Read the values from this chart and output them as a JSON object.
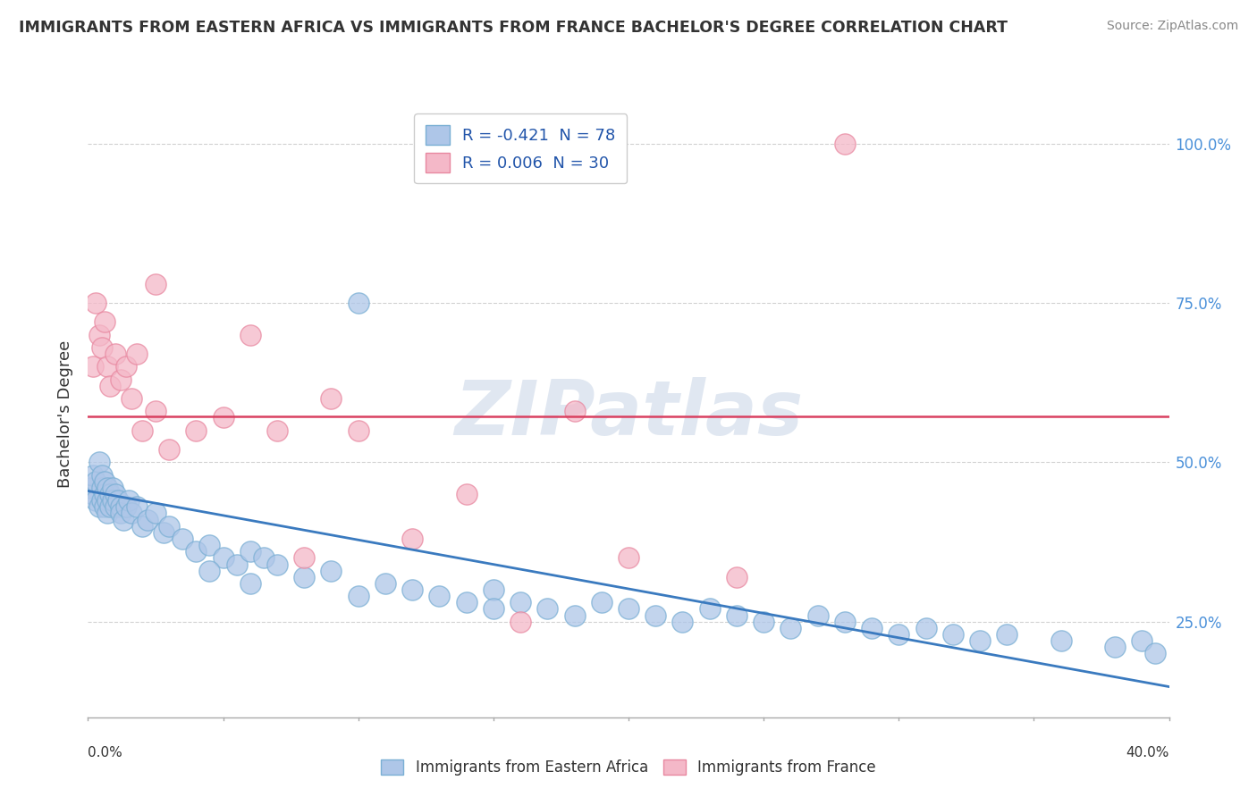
{
  "title": "IMMIGRANTS FROM EASTERN AFRICA VS IMMIGRANTS FROM FRANCE BACHELOR'S DEGREE CORRELATION CHART",
  "source": "Source: ZipAtlas.com",
  "ylabel": "Bachelor's Degree",
  "ytick_vals": [
    0.25,
    0.5,
    0.75,
    1.0
  ],
  "ytick_labels": [
    "25.0%",
    "50.0%",
    "75.0%",
    "100.0%"
  ],
  "xlim": [
    0.0,
    0.4
  ],
  "ylim": [
    0.1,
    1.05
  ],
  "blue_color": "#aec6e8",
  "blue_edge": "#7aafd4",
  "pink_color": "#f4b8c8",
  "pink_edge": "#e888a0",
  "trend_blue_color": "#3a7abf",
  "trend_pink_color": "#d94060",
  "blue_trend_x": [
    0.0,
    0.4
  ],
  "blue_trend_y": [
    0.455,
    0.148
  ],
  "pink_trend_x": [
    0.0,
    0.4
  ],
  "pink_trend_y": [
    0.572,
    0.572
  ],
  "watermark": "ZIPatlas",
  "watermark_color": "#ccd8e8",
  "legend_blue_label": "R = -0.421  N = 78",
  "legend_pink_label": "R = 0.006  N = 30",
  "background_color": "#ffffff",
  "blue_x": [
    0.001,
    0.002,
    0.002,
    0.003,
    0.003,
    0.004,
    0.004,
    0.005,
    0.005,
    0.005,
    0.006,
    0.006,
    0.006,
    0.007,
    0.007,
    0.007,
    0.008,
    0.008,
    0.009,
    0.009,
    0.01,
    0.01,
    0.011,
    0.012,
    0.012,
    0.013,
    0.014,
    0.015,
    0.016,
    0.018,
    0.02,
    0.022,
    0.025,
    0.028,
    0.03,
    0.035,
    0.04,
    0.045,
    0.05,
    0.055,
    0.06,
    0.065,
    0.07,
    0.08,
    0.09,
    0.1,
    0.11,
    0.12,
    0.13,
    0.14,
    0.15,
    0.16,
    0.17,
    0.18,
    0.19,
    0.2,
    0.21,
    0.22,
    0.23,
    0.24,
    0.25,
    0.26,
    0.27,
    0.28,
    0.29,
    0.3,
    0.31,
    0.32,
    0.33,
    0.34,
    0.36,
    0.38,
    0.39,
    0.395,
    0.1,
    0.045,
    0.06,
    0.15
  ],
  "blue_y": [
    0.46,
    0.45,
    0.48,
    0.47,
    0.44,
    0.5,
    0.43,
    0.46,
    0.48,
    0.44,
    0.45,
    0.43,
    0.47,
    0.46,
    0.44,
    0.42,
    0.45,
    0.43,
    0.46,
    0.44,
    0.45,
    0.43,
    0.44,
    0.43,
    0.42,
    0.41,
    0.43,
    0.44,
    0.42,
    0.43,
    0.4,
    0.41,
    0.42,
    0.39,
    0.4,
    0.38,
    0.36,
    0.37,
    0.35,
    0.34,
    0.36,
    0.35,
    0.34,
    0.32,
    0.33,
    0.75,
    0.31,
    0.3,
    0.29,
    0.28,
    0.3,
    0.28,
    0.27,
    0.26,
    0.28,
    0.27,
    0.26,
    0.25,
    0.27,
    0.26,
    0.25,
    0.24,
    0.26,
    0.25,
    0.24,
    0.23,
    0.24,
    0.23,
    0.22,
    0.23,
    0.22,
    0.21,
    0.22,
    0.2,
    0.29,
    0.33,
    0.31,
    0.27
  ],
  "pink_x": [
    0.002,
    0.003,
    0.004,
    0.005,
    0.006,
    0.007,
    0.008,
    0.01,
    0.012,
    0.014,
    0.016,
    0.018,
    0.02,
    0.025,
    0.025,
    0.03,
    0.04,
    0.05,
    0.06,
    0.07,
    0.08,
    0.09,
    0.1,
    0.12,
    0.14,
    0.16,
    0.18,
    0.2,
    0.24,
    0.28
  ],
  "pink_y": [
    0.65,
    0.75,
    0.7,
    0.68,
    0.72,
    0.65,
    0.62,
    0.67,
    0.63,
    0.65,
    0.6,
    0.67,
    0.55,
    0.58,
    0.78,
    0.52,
    0.55,
    0.57,
    0.7,
    0.55,
    0.35,
    0.6,
    0.55,
    0.38,
    0.45,
    0.25,
    0.58,
    0.35,
    0.32,
    1.0
  ]
}
